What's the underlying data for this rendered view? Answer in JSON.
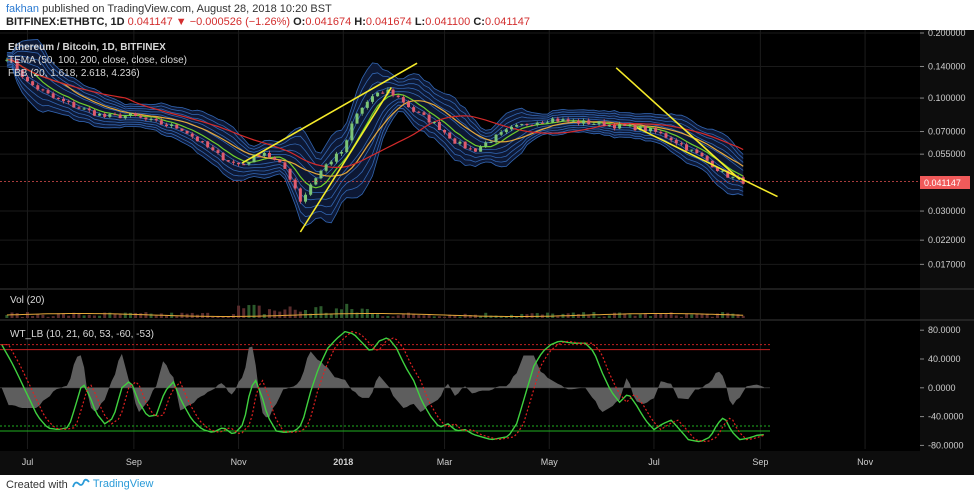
{
  "header": {
    "user": "fakhan",
    "published": "published on TradingView.com, August 28, 2018 10:20 BST",
    "symbol": "BITFINEX:ETHBTC, 1D",
    "last": "0.041147",
    "change": "▼ −0.000526 (−1.26%)",
    "o_label": "O:",
    "o": "0.041674",
    "h_label": "H:",
    "h": "0.041674",
    "l_label": "L:",
    "l": "0.041100",
    "c_label": "C:",
    "c": "0.041147"
  },
  "legend": {
    "title": "Ethereum / Bitcoin, 1D, BITFINEX",
    "tema": "TEMA (50, 100, 200, close, close, close)",
    "bb": "FBB (20, 1.618, 2.618, 4.236)",
    "vol": "Vol (20)",
    "wt": "WT_LB (10, 21, 60, 53, -60, -53)"
  },
  "footer": {
    "created": "Created with",
    "brand": "TradingView"
  },
  "colors": {
    "background": "#000000",
    "up": "#7cc576",
    "down": "#e05c6e",
    "ema_red": "#d42a2a",
    "ema_orange": "#e6a83a",
    "ema_green": "#6fcf2a",
    "bands": "#3f7fd9",
    "trendline": "#f5ea2a",
    "wt1": "#3fd13f",
    "wt2": "#e02020",
    "price_label_bg": "#f05a5a"
  },
  "chart_data": [
    {
      "type": "candlestick",
      "title": "Ethereum / Bitcoin, 1D, BITFINEX",
      "y_scale": "log",
      "ylim": [
        0.0135,
        0.2
      ],
      "y_ticks": [
        0.2,
        0.14,
        0.1,
        0.07,
        0.055,
        0.03,
        0.022,
        0.017
      ],
      "y_tick_labels": [
        "0.200000",
        "0.140000",
        "0.100000",
        "0.070000",
        "0.055000",
        "0.030000",
        "0.022000",
        "0.017000"
      ],
      "x_tick_labels": [
        "Jul",
        "Sep",
        "Nov",
        "2018",
        "Mar",
        "May",
        "Jul",
        "Sep",
        "Nov"
      ],
      "x_tick_days": [
        0,
        62,
        123,
        184,
        243,
        304,
        365,
        427,
        488
      ],
      "x_range_days": [
        -16,
        520
      ],
      "current_price": 0.041147,
      "current_price_label": "0.041147",
      "close_keypoints": [
        [
          -12,
          0.155
        ],
        [
          0,
          0.118
        ],
        [
          15,
          0.1
        ],
        [
          30,
          0.09
        ],
        [
          45,
          0.082
        ],
        [
          60,
          0.083
        ],
        [
          75,
          0.077
        ],
        [
          90,
          0.072
        ],
        [
          100,
          0.063
        ],
        [
          110,
          0.055
        ],
        [
          120,
          0.05
        ],
        [
          125,
          0.049
        ],
        [
          130,
          0.052
        ],
        [
          137,
          0.057
        ],
        [
          143,
          0.052
        ],
        [
          150,
          0.047
        ],
        [
          155,
          0.04
        ],
        [
          160,
          0.032
        ],
        [
          163,
          0.038
        ],
        [
          170,
          0.045
        ],
        [
          175,
          0.05
        ],
        [
          185,
          0.058
        ],
        [
          190,
          0.08
        ],
        [
          200,
          0.1
        ],
        [
          210,
          0.108
        ],
        [
          218,
          0.098
        ],
        [
          225,
          0.087
        ],
        [
          233,
          0.08
        ],
        [
          240,
          0.073
        ],
        [
          250,
          0.062
        ],
        [
          260,
          0.057
        ],
        [
          270,
          0.064
        ],
        [
          282,
          0.072
        ],
        [
          293,
          0.077
        ],
        [
          305,
          0.08
        ],
        [
          315,
          0.078
        ],
        [
          325,
          0.077
        ],
        [
          335,
          0.076
        ],
        [
          345,
          0.074
        ],
        [
          355,
          0.073
        ],
        [
          365,
          0.07
        ],
        [
          375,
          0.065
        ],
        [
          385,
          0.058
        ],
        [
          395,
          0.052
        ],
        [
          405,
          0.045
        ],
        [
          410,
          0.043
        ],
        [
          418,
          0.041
        ]
      ],
      "trendlines": [
        {
          "name": "rising-wedge-upper",
          "points": [
            [
              125,
              0.05
            ],
            [
              227,
              0.145
            ]
          ]
        },
        {
          "name": "rising-wedge-lower",
          "points": [
            [
              159,
              0.024
            ],
            [
              212,
              0.112
            ]
          ]
        },
        {
          "name": "falling-wedge-upper",
          "points": [
            [
              343,
              0.138
            ],
            [
              415,
              0.042
            ]
          ]
        },
        {
          "name": "falling-wedge-lower",
          "points": [
            [
              355,
              0.073
            ],
            [
              437,
              0.035
            ]
          ]
        }
      ]
    },
    {
      "type": "bar",
      "title": "Vol (20)"
    },
    {
      "type": "line",
      "title": "WT_LB (10, 21, 60, 53, -60, -53)",
      "ylim": [
        -85,
        90
      ],
      "y_ticks": [
        80,
        40,
        0,
        -40,
        -80
      ],
      "y_tick_labels": [
        "80.0000",
        "40.0000",
        "0.0000",
        "-40.0000",
        "-80.0000"
      ],
      "levels": [
        60,
        53,
        -53,
        -60
      ],
      "wt_keypoints": [
        [
          -15,
          60
        ],
        [
          -8,
          30
        ],
        [
          0,
          -10
        ],
        [
          6,
          -40
        ],
        [
          12,
          -56
        ],
        [
          18,
          -58
        ],
        [
          24,
          -55
        ],
        [
          28,
          -25
        ],
        [
          32,
          8
        ],
        [
          36,
          -10
        ],
        [
          40,
          -35
        ],
        [
          45,
          -50
        ],
        [
          50,
          -42
        ],
        [
          55,
          0
        ],
        [
          60,
          10
        ],
        [
          65,
          -20
        ],
        [
          70,
          -40
        ],
        [
          75,
          -38
        ],
        [
          80,
          -5
        ],
        [
          85,
          8
        ],
        [
          90,
          -20
        ],
        [
          96,
          -45
        ],
        [
          102,
          -58
        ],
        [
          108,
          -62
        ],
        [
          114,
          -55
        ],
        [
          120,
          -65
        ],
        [
          126,
          -50
        ],
        [
          130,
          0
        ],
        [
          133,
          10
        ],
        [
          137,
          -15
        ],
        [
          140,
          -40
        ],
        [
          145,
          -60
        ],
        [
          150,
          -62
        ],
        [
          156,
          -60
        ],
        [
          160,
          -50
        ],
        [
          165,
          -5
        ],
        [
          170,
          30
        ],
        [
          175,
          55
        ],
        [
          180,
          68
        ],
        [
          185,
          78
        ],
        [
          190,
          75
        ],
        [
          196,
          60
        ],
        [
          200,
          50
        ],
        [
          205,
          65
        ],
        [
          210,
          70
        ],
        [
          215,
          55
        ],
        [
          220,
          30
        ],
        [
          225,
          10
        ],
        [
          230,
          -20
        ],
        [
          235,
          -40
        ],
        [
          240,
          -55
        ],
        [
          245,
          -50
        ],
        [
          250,
          -60
        ],
        [
          255,
          -58
        ],
        [
          260,
          -65
        ],
        [
          270,
          -72
        ],
        [
          280,
          -68
        ],
        [
          285,
          -50
        ],
        [
          290,
          -10
        ],
        [
          295,
          30
        ],
        [
          300,
          50
        ],
        [
          305,
          60
        ],
        [
          310,
          65
        ],
        [
          318,
          62
        ],
        [
          325,
          62
        ],
        [
          330,
          50
        ],
        [
          335,
          20
        ],
        [
          340,
          -5
        ],
        [
          345,
          -20
        ],
        [
          350,
          -8
        ],
        [
          355,
          -25
        ],
        [
          360,
          -45
        ],
        [
          365,
          -58
        ],
        [
          370,
          -50
        ],
        [
          375,
          -45
        ],
        [
          380,
          -58
        ],
        [
          385,
          -72
        ],
        [
          392,
          -75
        ],
        [
          398,
          -68
        ],
        [
          402,
          -50
        ],
        [
          406,
          -40
        ],
        [
          410,
          -60
        ],
        [
          415,
          -72
        ],
        [
          420,
          -70
        ],
        [
          425,
          -66
        ],
        [
          430,
          -65
        ]
      ]
    }
  ]
}
